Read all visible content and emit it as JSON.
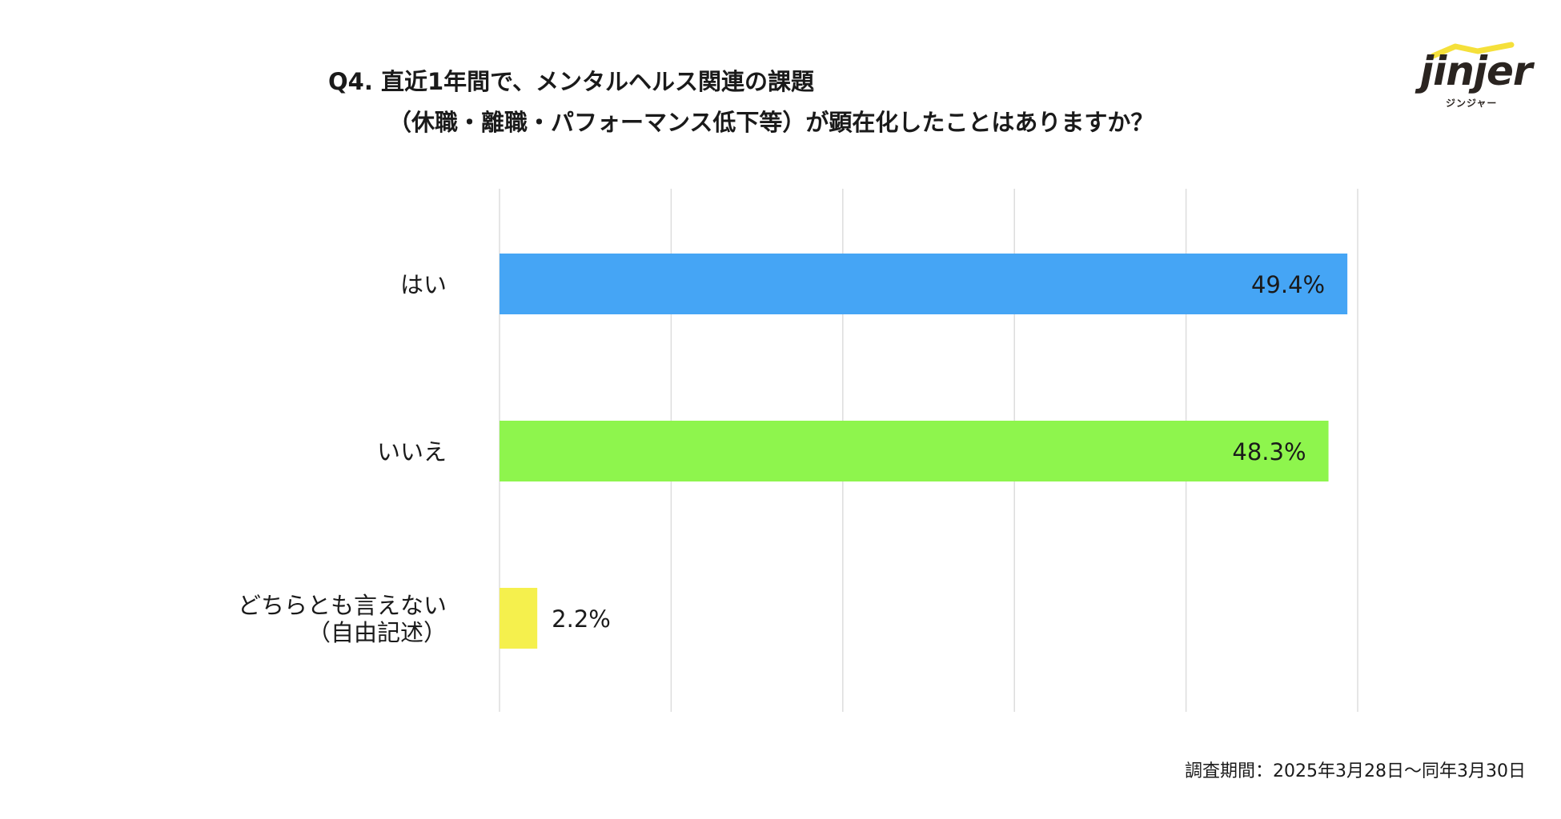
{
  "title": {
    "line1": "Q4. 直近1年間で、メンタルヘルス関連の課題",
    "line2": "（休職・離職・パフォーマンス低下等）が顕在化したことはありますか？"
  },
  "logo": {
    "word": "jinjer",
    "kana": "ジンジャー",
    "accent_color": "#f5e03a"
  },
  "footer": "調査期間：2025年3月28日〜同年3月30日",
  "chart_data": {
    "type": "bar",
    "orientation": "horizontal",
    "categories": [
      [
        "はい"
      ],
      [
        "いいえ"
      ],
      [
        "どちらとも言えない",
        "（自由記述）"
      ]
    ],
    "values": [
      49.4,
      48.3,
      2.2
    ],
    "value_labels": [
      "49.4%",
      "48.3%",
      "2.2%"
    ],
    "colors": [
      "#45a5f5",
      "#8ef54d",
      "#f5f04d"
    ],
    "xlim": [
      0,
      50
    ],
    "grid": true
  }
}
